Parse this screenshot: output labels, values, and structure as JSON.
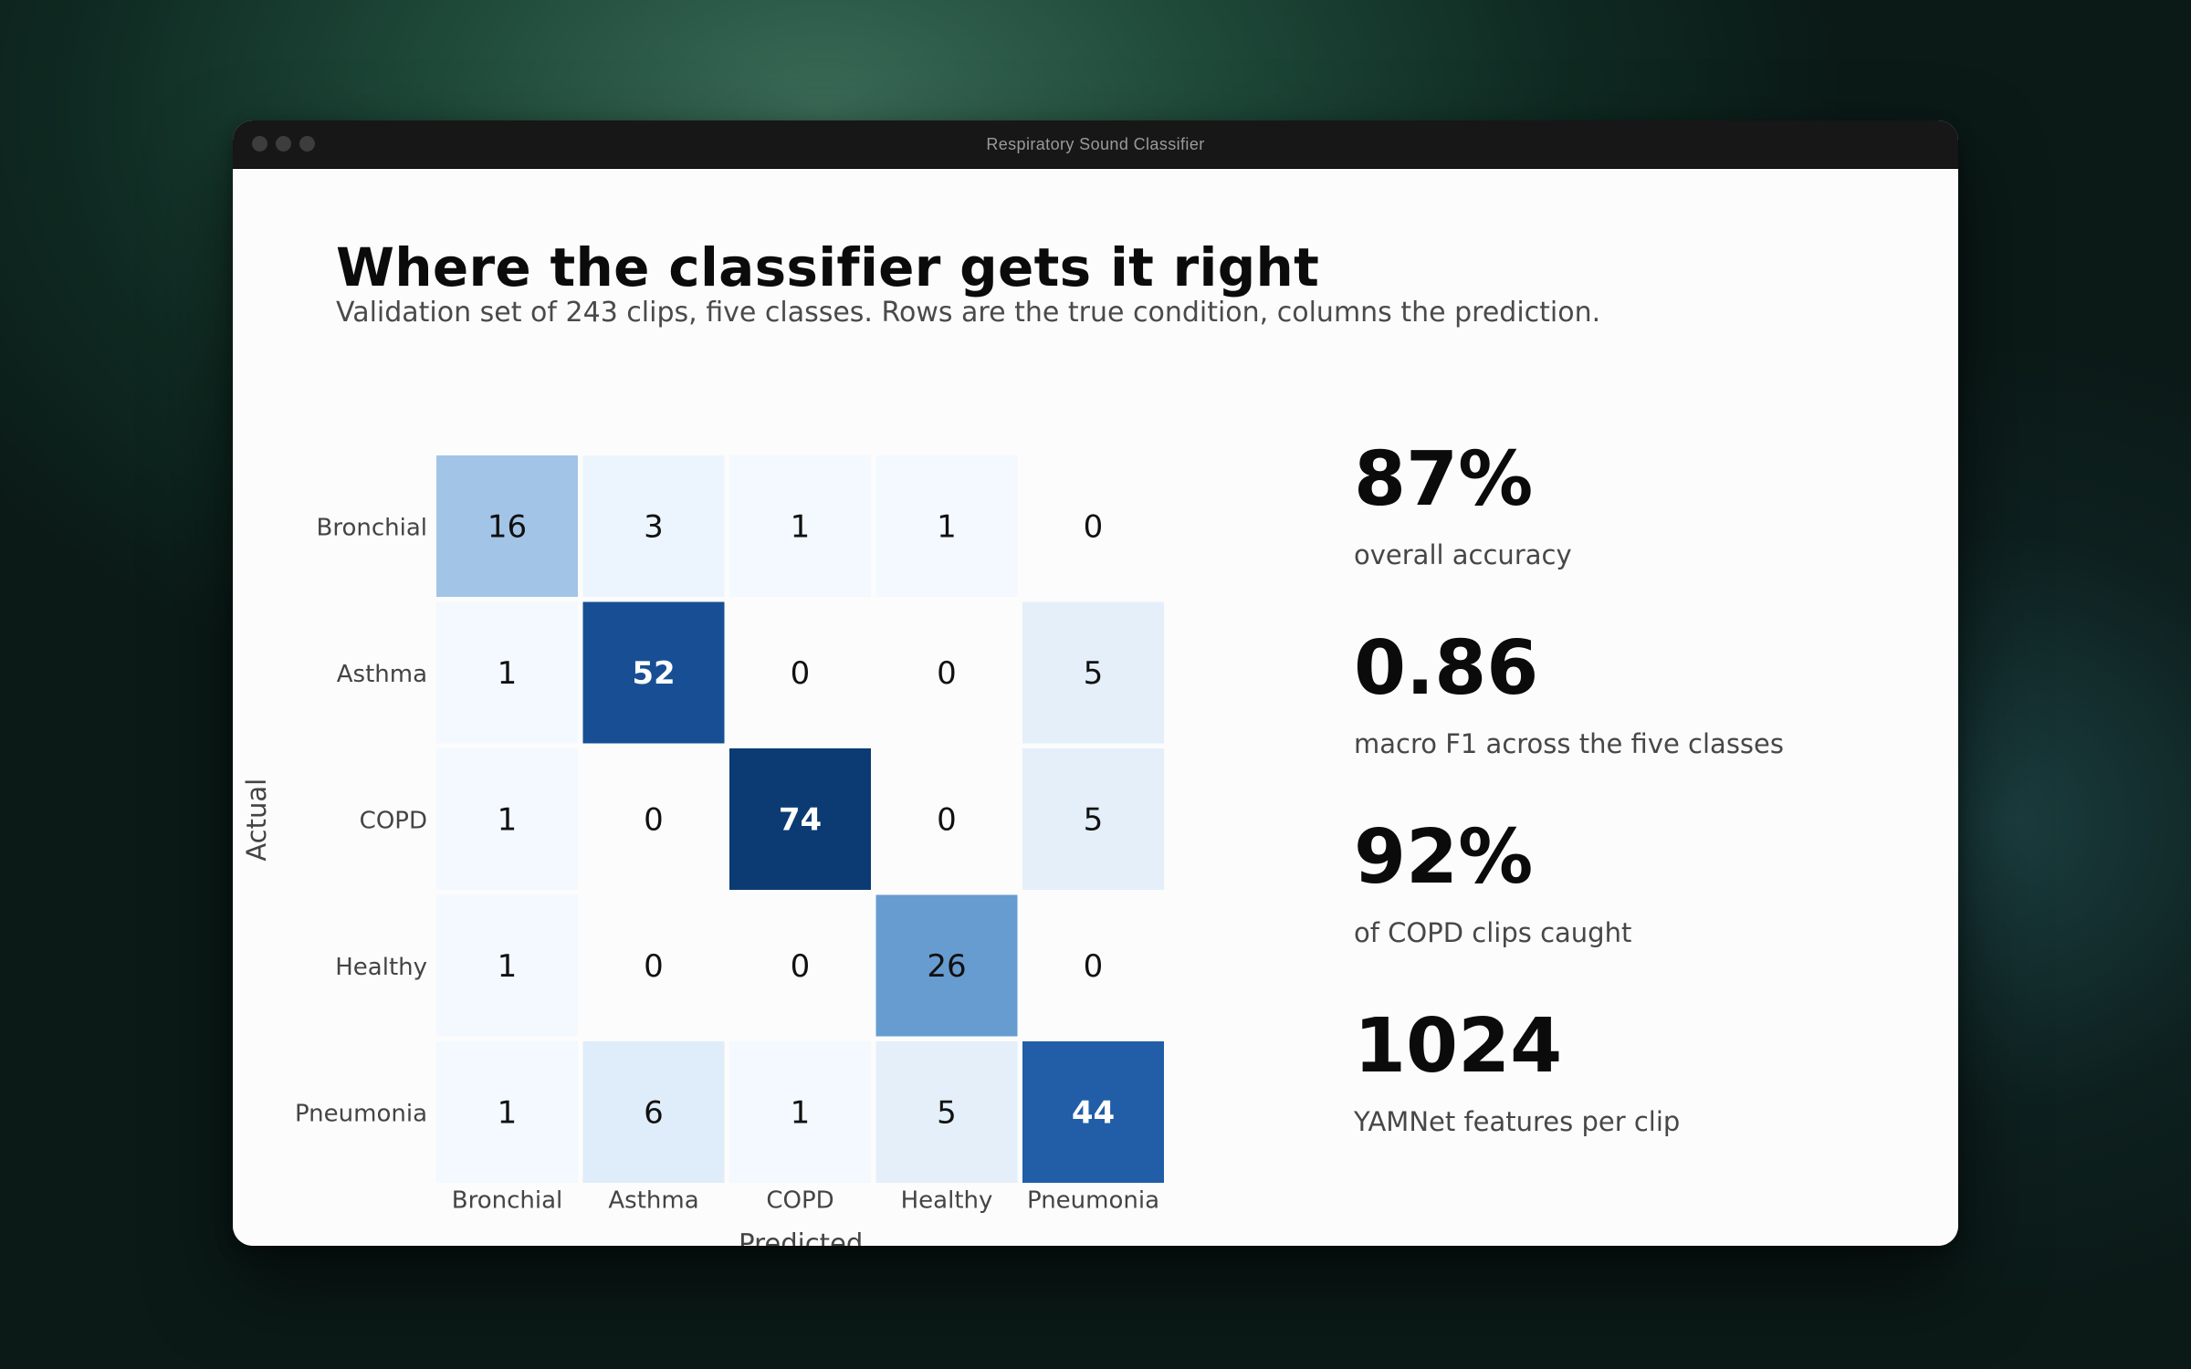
{
  "window": {
    "title": "Respiratory Sound Classifier"
  },
  "header": {
    "title": "Where the classifier gets it right",
    "subtitle": "Validation set of 243 clips, five classes. Rows are the true condition, columns the prediction."
  },
  "chart_data": {
    "type": "heatmap",
    "title": "",
    "xlabel": "Predicted",
    "ylabel": "Actual",
    "rows": [
      "Bronchial",
      "Asthma",
      "COPD",
      "Healthy",
      "Pneumonia"
    ],
    "columns": [
      "Bronchial",
      "Asthma",
      "COPD",
      "Healthy",
      "Pneumonia"
    ],
    "values": [
      [
        16,
        3,
        1,
        1,
        0
      ],
      [
        1,
        52,
        0,
        0,
        5
      ],
      [
        1,
        0,
        74,
        0,
        5
      ],
      [
        1,
        0,
        0,
        26,
        0
      ],
      [
        1,
        6,
        1,
        5,
        44
      ]
    ],
    "colorscale": "Blues",
    "grid": false,
    "legend": "none"
  },
  "stats": [
    {
      "value": "87%",
      "label": "overall accuracy"
    },
    {
      "value": "0.86",
      "label": "macro F1 across the five classes"
    },
    {
      "value": "92%",
      "label": "of COPD clips caught"
    },
    {
      "value": "1024",
      "label": "YAMNet features per clip"
    }
  ],
  "colors": {
    "cell_dark": "#0c3b74",
    "cell_light": "#f7fafd",
    "text_dark": "#111111",
    "text_light": "#ffffff"
  }
}
